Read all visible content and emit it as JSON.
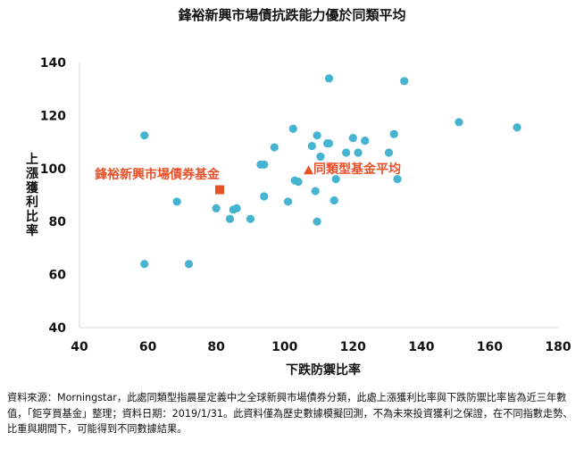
{
  "chart_data": {
    "type": "scatter",
    "title": "鋒裕新興市場債抗跌能力優於同類平均",
    "xlabel": "下跌防禦比率",
    "ylabel": "上漲獲利比率",
    "xlim": [
      40,
      180
    ],
    "ylim": [
      40,
      140
    ],
    "xticks": [
      "40",
      "60",
      "80",
      "100",
      "120",
      "140",
      "160",
      "180"
    ],
    "yticks": [
      "40",
      "60",
      "80",
      "100",
      "120",
      "140"
    ],
    "grid": false,
    "colors": {
      "peers": "#45b3d2",
      "fund": "#e8512a",
      "average": "#e8512a",
      "axis": "#d9d9d9"
    },
    "peers": [
      [
        59,
        112.5
      ],
      [
        59,
        64
      ],
      [
        68.5,
        87.5
      ],
      [
        72,
        64
      ],
      [
        80,
        85
      ],
      [
        84,
        81
      ],
      [
        85,
        84.5
      ],
      [
        86,
        85
      ],
      [
        90,
        81
      ],
      [
        93,
        101.5
      ],
      [
        94,
        101.5
      ],
      [
        94,
        89.5
      ],
      [
        97,
        108
      ],
      [
        101,
        87.5
      ],
      [
        102.5,
        115
      ],
      [
        103,
        95.5
      ],
      [
        104,
        95
      ],
      [
        108,
        108.5
      ],
      [
        109,
        91.5
      ],
      [
        109.5,
        80
      ],
      [
        109.5,
        112.5
      ],
      [
        110.5,
        104.5
      ],
      [
        112.5,
        109.5
      ],
      [
        113,
        109.5
      ],
      [
        113,
        134
      ],
      [
        114.5,
        88
      ],
      [
        115,
        96
      ],
      [
        118,
        106
      ],
      [
        120,
        111.5
      ],
      [
        121.5,
        106
      ],
      [
        123.5,
        110.5
      ],
      [
        130.5,
        106
      ],
      [
        132,
        113
      ],
      [
        133,
        96
      ],
      [
        135,
        133
      ],
      [
        151,
        117.5
      ],
      [
        168,
        115.5
      ]
    ],
    "fund": {
      "name": "鋒裕新興市場債券基金",
      "x": 81,
      "y": 92
    },
    "average": {
      "name": "同類型基金平均",
      "x": 107,
      "y": 99.5
    }
  },
  "note": "資料來源：Morningstar，此處同類型指晨星定義中之全球新興市場債券分類，此處上漲獲利比率與下跌防禦比率皆為近三年數值，「鉅亨買基金」整理；資料日期：2019/1/31。此資料僅為歷史數據模擬回測，不為未來投資獲利之保證，在不同指數走勢、比重與期間下，可能得到不同數據結果。"
}
